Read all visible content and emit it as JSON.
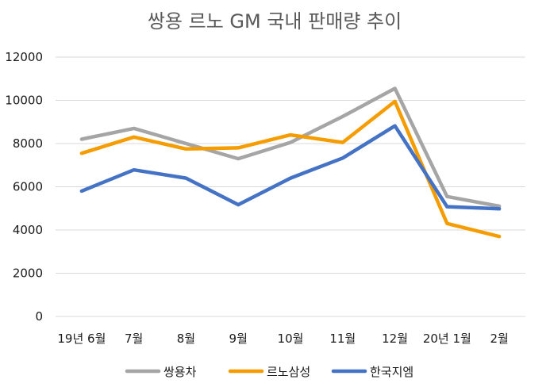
{
  "chart_data": {
    "type": "line",
    "title": "쌍용 르노 GM 국내 판매량 추이",
    "categories": [
      "19년 6월",
      "7월",
      "8월",
      "9월",
      "10월",
      "11월",
      "12월",
      "20년 1월",
      "2월"
    ],
    "ylim": [
      0,
      12000
    ],
    "yticks": [
      0,
      2000,
      4000,
      6000,
      8000,
      10000,
      12000
    ],
    "grid": true,
    "legend_position": "bottom",
    "series": [
      {
        "name": "쌍용차",
        "color": "#a5a5a5",
        "values": [
          8200,
          8700,
          8000,
          7300,
          8050,
          9250,
          10550,
          5550,
          5100
        ]
      },
      {
        "name": "르노삼성",
        "color": "#f59d00",
        "values": [
          7550,
          8300,
          7750,
          7800,
          8400,
          8050,
          9950,
          4300,
          3700
        ]
      },
      {
        "name": "한국지엠",
        "color": "#4472c4",
        "values": [
          5800,
          6780,
          6400,
          5170,
          6400,
          7330,
          8820,
          5080,
          4980
        ]
      }
    ]
  }
}
